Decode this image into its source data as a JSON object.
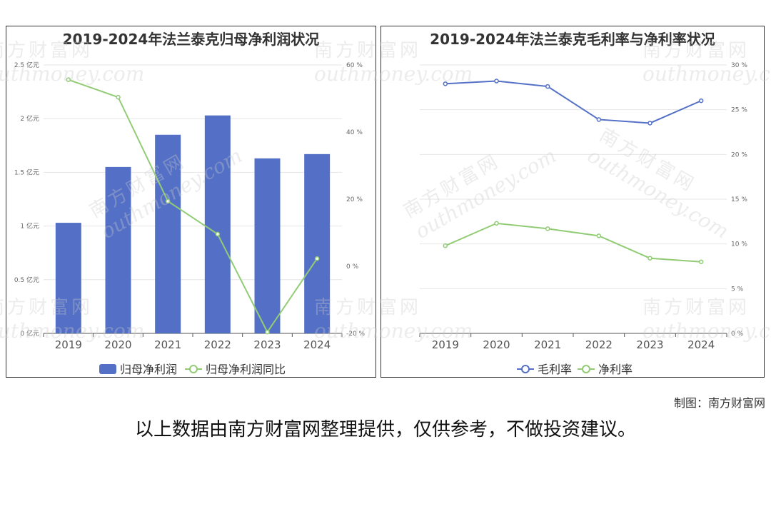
{
  "watermark": {
    "cn": "南方财富网",
    "en": "outhmoney.com"
  },
  "footer": {
    "credit": "制图：南方财富网",
    "disclaimer": "以上数据由南方财富网整理提供，仅供参考，不做投资建议。"
  },
  "colors": {
    "bar": "#5470c6",
    "green": "#91cc75",
    "blue": "#5470c6",
    "grid": "#e6e6e6"
  },
  "chart_data": [
    {
      "type": "bar",
      "title": "2019-2024年法兰泰克归母净利润状况",
      "categories": [
        "2019",
        "2020",
        "2021",
        "2022",
        "2023",
        "2024"
      ],
      "series": [
        {
          "name": "归母净利润",
          "type": "bar",
          "axis": "left",
          "values": [
            1.03,
            1.55,
            1.85,
            2.03,
            1.63,
            1.67
          ]
        },
        {
          "name": "归母净利润同比",
          "type": "line",
          "axis": "right",
          "values": [
            55.6,
            50.4,
            19.4,
            9.6,
            -19.6,
            2.3
          ]
        }
      ],
      "ylim_left": [
        0,
        2.5
      ],
      "yticks_left": [
        "0 亿元",
        "0.5 亿元",
        "1 亿元",
        "1.5 亿元",
        "2 亿元",
        "2.5 亿元"
      ],
      "ylim_right": [
        -20,
        60
      ],
      "yticks_right": [
        "-20 %",
        "0 %",
        "20 %",
        "40 %",
        "60 %"
      ],
      "grid": true,
      "legend_position": "bottom"
    },
    {
      "type": "line",
      "title": "2019-2024年法兰泰克毛利率与净利率状况",
      "categories": [
        "2019",
        "2020",
        "2021",
        "2022",
        "2023",
        "2024"
      ],
      "series": [
        {
          "name": "毛利率",
          "values": [
            27.9,
            28.2,
            27.6,
            23.9,
            23.5,
            26.0
          ]
        },
        {
          "name": "净利率",
          "values": [
            9.8,
            12.3,
            11.7,
            10.9,
            8.4,
            8.0
          ]
        }
      ],
      "ylim": [
        0,
        30
      ],
      "yticks": [
        "0 %",
        "5 %",
        "10 %",
        "15 %",
        "20 %",
        "25 %",
        "30 %"
      ],
      "grid": true,
      "legend_position": "bottom"
    }
  ]
}
